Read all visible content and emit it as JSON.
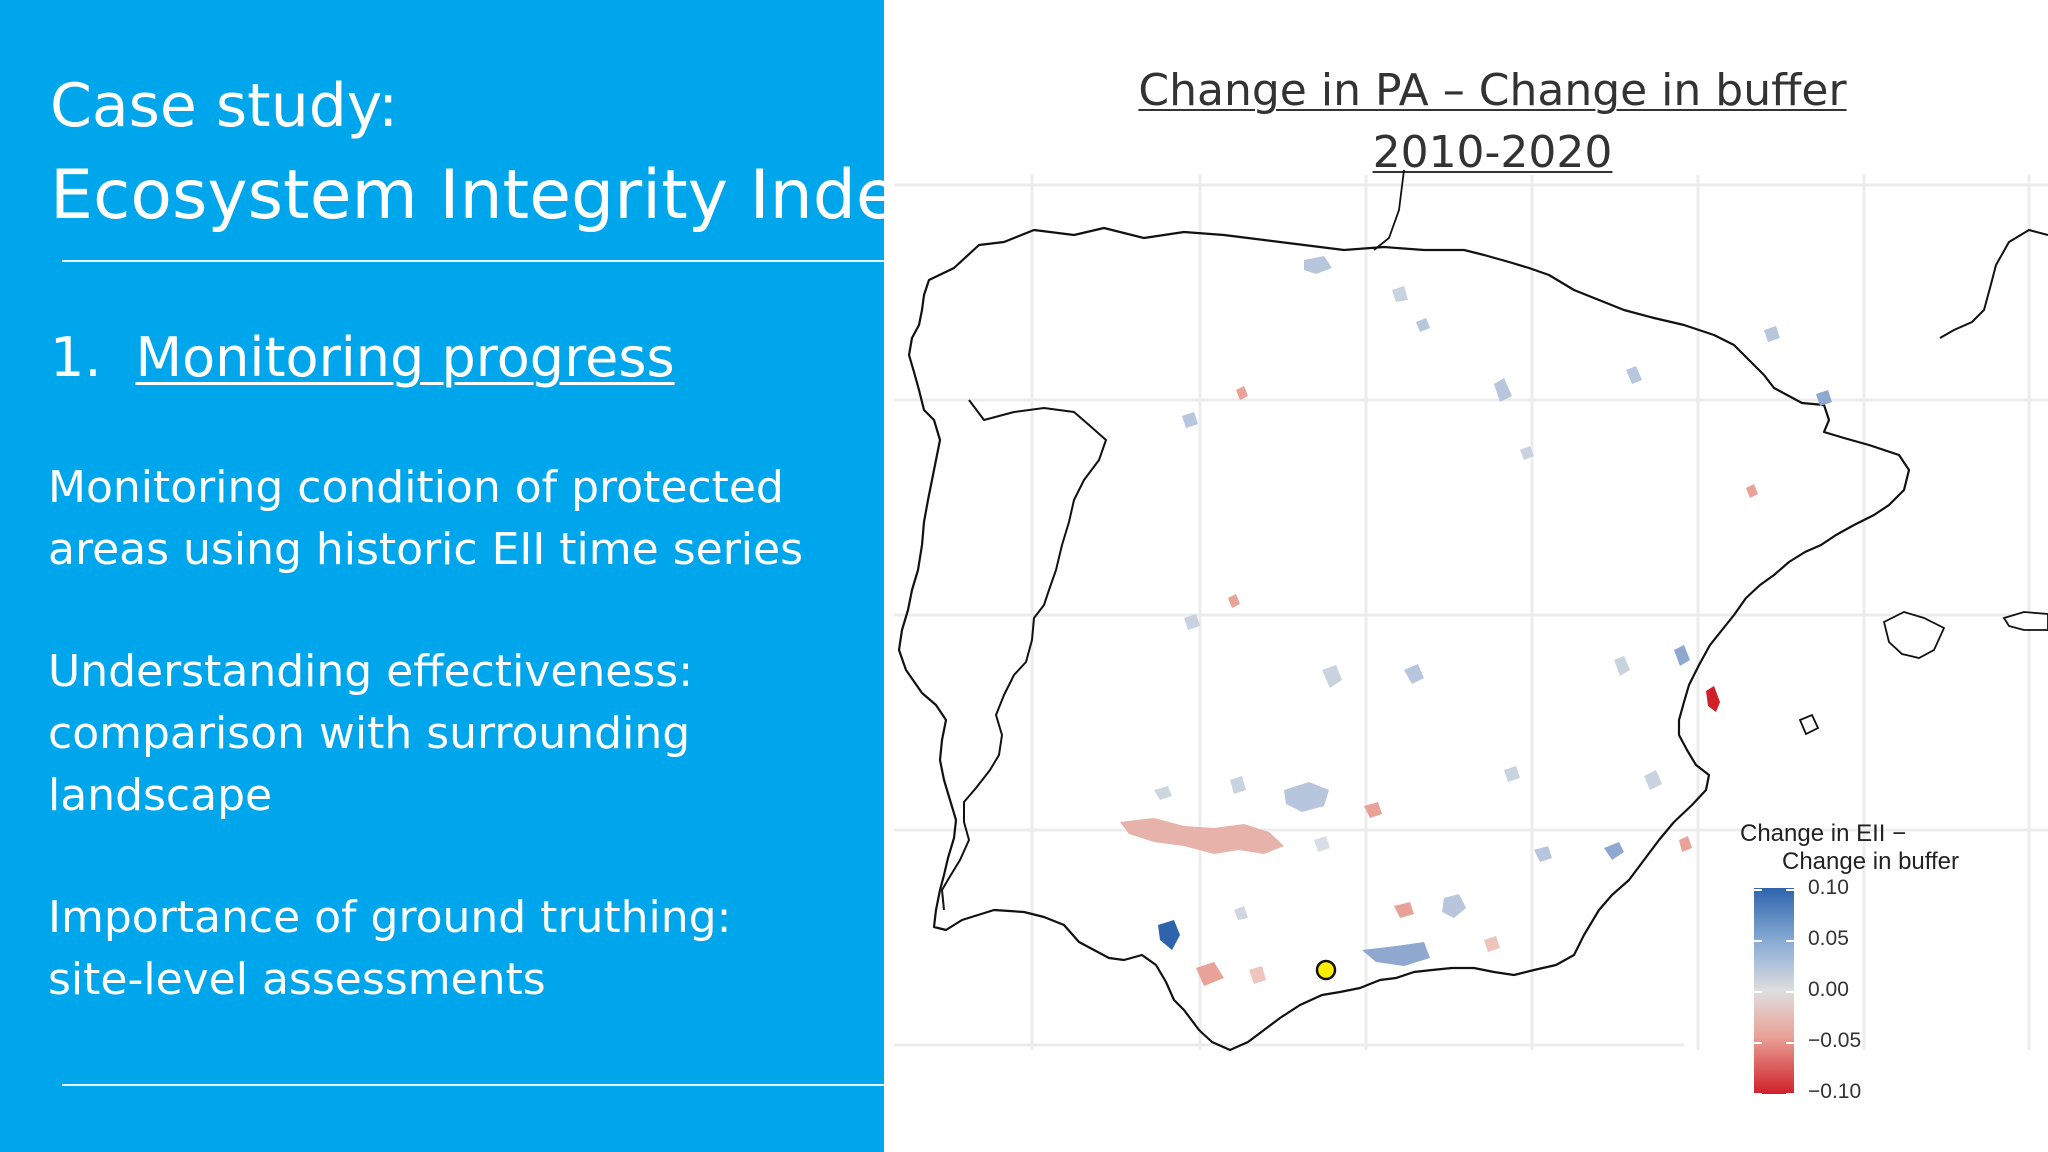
{
  "slide": {
    "title_line1": "Case study:",
    "title_line2": "Ecosystem Integrity Index",
    "section_number": "1.",
    "section_title": "Monitoring progress",
    "paragraphs": [
      "Monitoring condition of protected areas using historic EII time series",
      "Understanding effectiveness: comparison with surrounding landscape",
      "Importance of ground truthing: site-level assessments"
    ]
  },
  "map": {
    "title_line1": "Change in PA – Change in buffer",
    "title_line2": "2010-2020",
    "legend": {
      "title_line1": "Change in EII −",
      "title_line2": "Change in buffer",
      "ticks": [
        "0.10",
        "0.05",
        "0.00",
        "−0.05",
        "−0.10"
      ],
      "min": -0.1,
      "max": 0.1
    },
    "colors": {
      "positive": "#2f64ad",
      "neutral": "#dedede",
      "negative": "#d0202a",
      "highlight_marker": "#ffee00"
    }
  }
}
